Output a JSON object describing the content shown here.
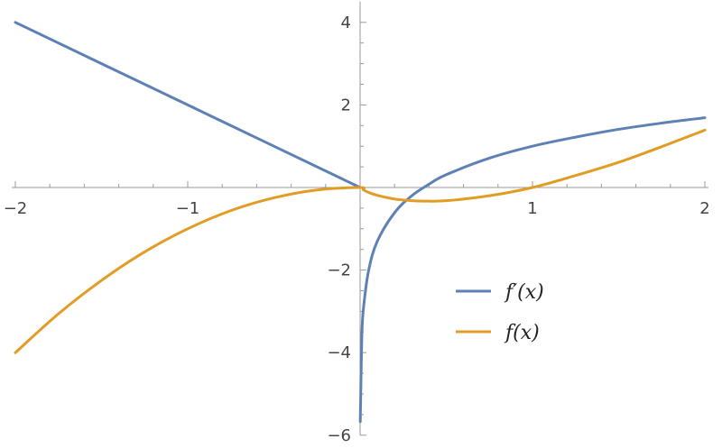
{
  "chart_data": {
    "type": "line",
    "title": "",
    "xlabel": "",
    "ylabel": "",
    "xlim": [
      -2,
      2
    ],
    "ylim": [
      -6,
      4.5
    ],
    "grid": false,
    "legend_position": "right-center",
    "x_ticks": [
      {
        "value": -2,
        "label": "−2"
      },
      {
        "value": -1,
        "label": "−1"
      },
      {
        "value": 1,
        "label": "1"
      },
      {
        "value": 2,
        "label": "2"
      }
    ],
    "y_ticks": [
      {
        "value": -6,
        "label": "−6"
      },
      {
        "value": -4,
        "label": "−4"
      },
      {
        "value": -2,
        "label": "−2"
      },
      {
        "value": 2,
        "label": "2"
      },
      {
        "value": 4,
        "label": "4"
      }
    ],
    "series": [
      {
        "name": "f′(x)",
        "color": "#5e81b5",
        "x": [
          -2,
          -1.5,
          -1,
          -0.5,
          0,
          0.001,
          0.01,
          0.02,
          0.05,
          0.1,
          0.2,
          0.3,
          0.4,
          0.5,
          0.75,
          1,
          1.25,
          1.5,
          1.75,
          2
        ],
        "y": [
          4,
          3,
          2,
          1,
          0,
          -5.67,
          -3.61,
          -2.91,
          -2.0,
          -1.3,
          -0.61,
          -0.2,
          0.08,
          0.31,
          0.71,
          1.0,
          1.22,
          1.41,
          1.56,
          1.69
        ]
      },
      {
        "name": "f(x)",
        "color": "#e19c24",
        "x": [
          -2,
          -1.75,
          -1.5,
          -1.25,
          -1,
          -0.75,
          -0.5,
          -0.25,
          0,
          0.02,
          0.05,
          0.1,
          0.2,
          0.3,
          0.37,
          0.5,
          0.75,
          1,
          1.25,
          1.5,
          1.75,
          2
        ],
        "y": [
          -4,
          -3.06,
          -2.25,
          -1.56,
          -1,
          -0.56,
          -0.25,
          -0.06,
          0,
          -0.06,
          -0.12,
          -0.19,
          -0.28,
          -0.32,
          -0.33,
          -0.32,
          -0.2,
          0,
          0.29,
          0.61,
          0.99,
          1.39
        ]
      }
    ]
  }
}
